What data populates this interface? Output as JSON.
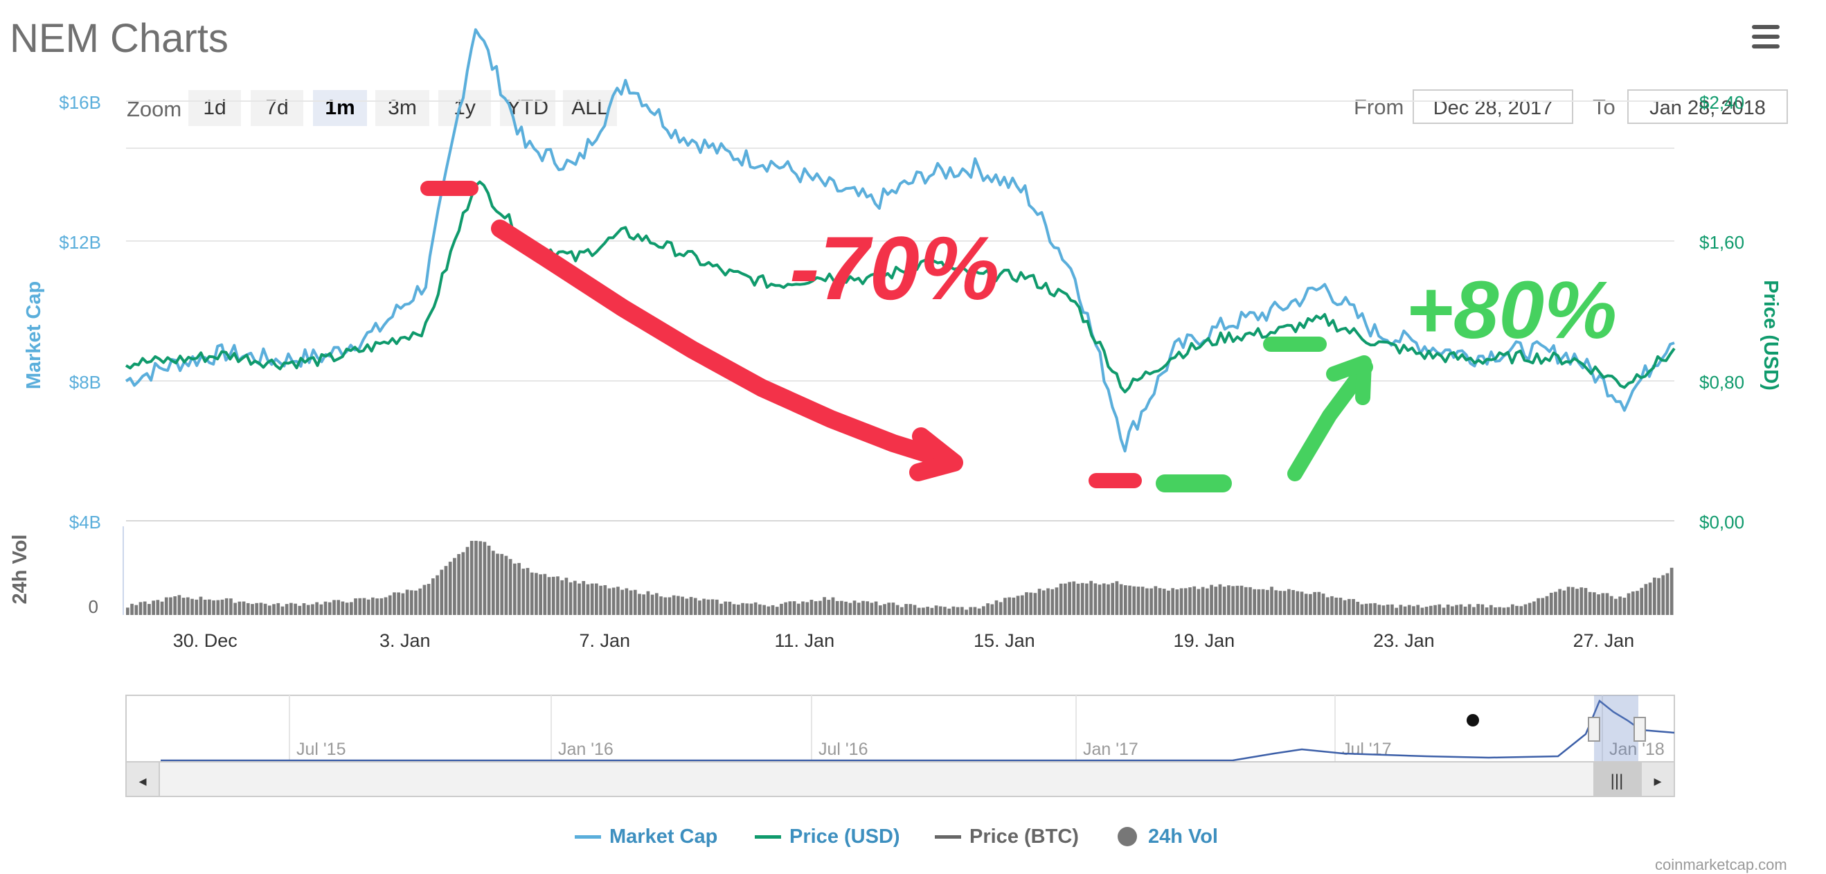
{
  "page": {
    "title": "NEM Charts",
    "credits": "coinmarketcap.com"
  },
  "toolbar": {
    "zoom_label": "Zoom",
    "zoom_buttons": [
      {
        "label": "1d",
        "active": false
      },
      {
        "label": "7d",
        "active": false
      },
      {
        "label": "1m",
        "active": true
      },
      {
        "label": "3m",
        "active": false
      },
      {
        "label": "1y",
        "active": false
      },
      {
        "label": "YTD",
        "active": false
      },
      {
        "label": "ALL",
        "active": false
      }
    ],
    "from_label": "From",
    "from_value": "Dec 28, 2017",
    "to_label": "To",
    "to_value": "Jan 28, 2018"
  },
  "colors": {
    "market_cap": "#5aaedb",
    "price_usd": "#0f9a6c",
    "price_btc": "#666666",
    "volume": "#7a7a7a",
    "navigator_line": "#3c5fa8",
    "annotation_red": "#f33249",
    "annotation_green": "#46d15f"
  },
  "annotations": {
    "drop_text": "-70%",
    "rise_text": "+80%"
  },
  "chart_data": {
    "type": "line",
    "x_ticks": [
      "30. Dec",
      "3. Jan",
      "7. Jan",
      "11. Jan",
      "15. Jan",
      "19. Jan",
      "23. Jan",
      "27. Jan"
    ],
    "xlim": [
      "Dec 28, 2017",
      "Jan 28, 2018"
    ],
    "left_axis": {
      "label": "Market Cap",
      "ticks": [
        "$4B",
        "$8B",
        "$12B",
        "$16B"
      ],
      "range": [
        4,
        20
      ],
      "unit": "B USD"
    },
    "right_axis": {
      "label": "Price (USD)",
      "ticks": [
        "$0,00",
        "$0,80",
        "$1,60",
        "$2,40"
      ],
      "range": [
        0,
        3.2
      ]
    },
    "volume_axis": {
      "label": "24h Vol",
      "ticks": [
        "0"
      ]
    },
    "grid": true,
    "legend_position": "bottom-center",
    "legend": [
      "Market Cap",
      "Price (USD)",
      "Price (BTC)",
      "24h Vol"
    ],
    "market_cap": {
      "name": "Market Cap",
      "points": [
        [
          "Dec 28",
          8.0
        ],
        [
          "Dec 29",
          8.5
        ],
        [
          "Dec 30",
          8.8
        ],
        [
          "Dec 31",
          8.6
        ],
        [
          "Jan 1",
          8.7
        ],
        [
          "Jan 2",
          9.4
        ],
        [
          "Jan 3",
          10.8
        ],
        [
          "Jan 4",
          18.2
        ],
        [
          "Jan 5",
          14.7
        ],
        [
          "Jan 6",
          14.1
        ],
        [
          "Jan 7",
          16.6
        ],
        [
          "Jan 8",
          15.1
        ],
        [
          "Jan 9",
          14.5
        ],
        [
          "Jan 10",
          14.2
        ],
        [
          "Jan 11",
          13.6
        ],
        [
          "Jan 12",
          13.1
        ],
        [
          "Jan 13",
          13.9
        ],
        [
          "Jan 14",
          14.1
        ],
        [
          "Jan 15",
          13.4
        ],
        [
          "Jan 16",
          11.0
        ],
        [
          "Jan 17",
          6.2
        ],
        [
          "Jan 18",
          8.9
        ],
        [
          "Jan 19",
          9.6
        ],
        [
          "Jan 20",
          10.0
        ],
        [
          "Jan 21",
          10.7
        ],
        [
          "Jan 22",
          9.4
        ],
        [
          "Jan 23",
          9.0
        ],
        [
          "Jan 24",
          8.7
        ],
        [
          "Jan 25",
          8.9
        ],
        [
          "Jan 26",
          8.7
        ],
        [
          "Jan 27",
          7.4
        ],
        [
          "Jan 28",
          9.3
        ]
      ]
    },
    "price_usd": {
      "name": "Price (USD)",
      "points": [
        [
          "Dec 28",
          0.9
        ],
        [
          "Dec 29",
          0.92
        ],
        [
          "Dec 30",
          0.95
        ],
        [
          "Dec 31",
          0.9
        ],
        [
          "Jan 1",
          0.92
        ],
        [
          "Jan 2",
          1.0
        ],
        [
          "Jan 3",
          1.1
        ],
        [
          "Jan 4",
          1.95
        ],
        [
          "Jan 5",
          1.6
        ],
        [
          "Jan 6",
          1.5
        ],
        [
          "Jan 7",
          1.65
        ],
        [
          "Jan 8",
          1.55
        ],
        [
          "Jan 9",
          1.42
        ],
        [
          "Jan 10",
          1.35
        ],
        [
          "Jan 11",
          1.4
        ],
        [
          "Jan 12",
          1.38
        ],
        [
          "Jan 13",
          1.48
        ],
        [
          "Jan 14",
          1.4
        ],
        [
          "Jan 15",
          1.4
        ],
        [
          "Jan 16",
          1.25
        ],
        [
          "Jan 17",
          0.75
        ],
        [
          "Jan 18",
          0.95
        ],
        [
          "Jan 19",
          1.05
        ],
        [
          "Jan 20",
          1.08
        ],
        [
          "Jan 21",
          1.15
        ],
        [
          "Jan 22",
          1.02
        ],
        [
          "Jan 23",
          0.95
        ],
        [
          "Jan 24",
          0.92
        ],
        [
          "Jan 25",
          0.94
        ],
        [
          "Jan 26",
          0.92
        ],
        [
          "Jan 27",
          0.78
        ],
        [
          "Jan 28",
          0.97
        ]
      ]
    },
    "volume_24h": {
      "name": "24h Vol",
      "relative_values": [
        0.1,
        0.22,
        0.18,
        0.12,
        0.15,
        0.2,
        0.35,
        0.92,
        0.55,
        0.4,
        0.3,
        0.22,
        0.15,
        0.12,
        0.2,
        0.14,
        0.1,
        0.08,
        0.25,
        0.4,
        0.38,
        0.3,
        0.35,
        0.32,
        0.25,
        0.12,
        0.1,
        0.12,
        0.1,
        0.35,
        0.2,
        0.55
      ]
    }
  },
  "navigator": {
    "labels": [
      "Jul '15",
      "Jan '16",
      "Jul '16",
      "Jan '17",
      "Jul '17",
      "Jan '18"
    ],
    "scroll_left": "◂",
    "scroll_right": "▸",
    "scroll_grip": "|||"
  }
}
